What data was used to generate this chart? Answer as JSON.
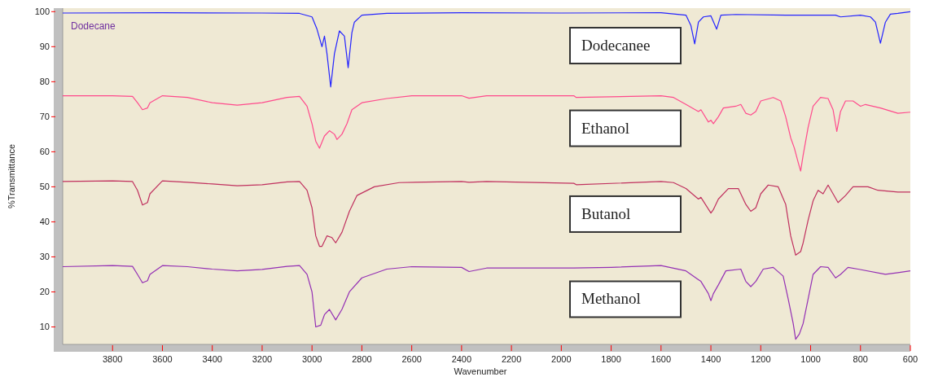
{
  "chart_data": {
    "type": "line",
    "xlabel": "Wavenumber",
    "ylabel": "%Transmittance",
    "xlim": [
      4000,
      600
    ],
    "ylim": [
      5,
      101
    ],
    "xticks": [
      3800,
      3600,
      3400,
      3200,
      3000,
      2800,
      2600,
      2400,
      2200,
      2000,
      1800,
      1600,
      1400,
      1200,
      1000,
      800,
      600
    ],
    "yticks": [
      10,
      20,
      30,
      40,
      50,
      60,
      70,
      80,
      90,
      100
    ],
    "grid": false,
    "annotations": [
      "Dodecane"
    ],
    "series": [
      {
        "name": "Dodecanee",
        "color": "#2424ff",
        "x": [
          4000,
          3600,
          3200,
          3050,
          3000,
          2980,
          2960,
          2950,
          2940,
          2925,
          2910,
          2890,
          2870,
          2855,
          2840,
          2830,
          2800,
          2700,
          2400,
          2000,
          1600,
          1500,
          1480,
          1465,
          1450,
          1430,
          1400,
          1377,
          1360,
          1300,
          1100,
          900,
          880,
          800,
          760,
          740,
          720,
          700,
          680,
          650,
          600
        ],
        "values": [
          99.6,
          99.7,
          99.6,
          99.5,
          98.5,
          95,
          90,
          93,
          88,
          78.5,
          88,
          94.5,
          93,
          84,
          94,
          97,
          99,
          99.5,
          99.7,
          99.6,
          99.7,
          99,
          96,
          90.8,
          97,
          98.5,
          98.8,
          95,
          99,
          99.2,
          99,
          99,
          98.5,
          99,
          98.5,
          97,
          91,
          97,
          99.3,
          99.5,
          100
        ]
      },
      {
        "name": "Ethanol",
        "color": "#ff4a8c",
        "x": [
          4000,
          3800,
          3720,
          3700,
          3680,
          3660,
          3650,
          3600,
          3500,
          3400,
          3300,
          3200,
          3100,
          3050,
          3020,
          3000,
          2985,
          2970,
          2950,
          2930,
          2910,
          2900,
          2880,
          2860,
          2840,
          2800,
          2700,
          2600,
          2400,
          2370,
          2300,
          1950,
          1940,
          1600,
          1550,
          1500,
          1450,
          1440,
          1410,
          1400,
          1390,
          1370,
          1350,
          1300,
          1280,
          1260,
          1240,
          1220,
          1200,
          1150,
          1120,
          1100,
          1080,
          1065,
          1050,
          1040,
          1030,
          1010,
          990,
          960,
          930,
          910,
          895,
          880,
          860,
          830,
          800,
          780,
          720,
          650,
          600
        ],
        "values": [
          76,
          76,
          75.8,
          74,
          72,
          72.5,
          74,
          76,
          75.5,
          74,
          73.3,
          74,
          75.5,
          75.8,
          73,
          68,
          63,
          61,
          64.5,
          66,
          65,
          63.5,
          65,
          68,
          72,
          74,
          75.2,
          76,
          76,
          75.3,
          76,
          76,
          75.5,
          76,
          75.5,
          73.5,
          71.5,
          72,
          68.5,
          69,
          68,
          70,
          72.5,
          73,
          73.5,
          71,
          70.5,
          71.5,
          74.5,
          75.5,
          74.5,
          70,
          64,
          61,
          57,
          54.5,
          59,
          67,
          73,
          75.5,
          75.2,
          72,
          65.8,
          71.5,
          74.5,
          74.5,
          73,
          73.5,
          72.5,
          71,
          71.3
        ]
      },
      {
        "name": "Butanol",
        "color": "#c0305e",
        "x": [
          4000,
          3800,
          3720,
          3700,
          3680,
          3660,
          3650,
          3600,
          3500,
          3400,
          3300,
          3200,
          3100,
          3050,
          3020,
          3000,
          2985,
          2970,
          2960,
          2940,
          2920,
          2905,
          2880,
          2850,
          2820,
          2750,
          2650,
          2400,
          2370,
          2300,
          1950,
          1940,
          1600,
          1550,
          1500,
          1450,
          1440,
          1400,
          1390,
          1370,
          1330,
          1290,
          1260,
          1240,
          1220,
          1200,
          1170,
          1130,
          1100,
          1080,
          1060,
          1040,
          1030,
          1010,
          990,
          970,
          950,
          930,
          910,
          890,
          860,
          830,
          770,
          730,
          650,
          600
        ],
        "values": [
          51.5,
          51.7,
          51.5,
          49,
          44.8,
          45.5,
          48,
          51.7,
          51.3,
          50.8,
          50.3,
          50.6,
          51.4,
          51.5,
          49,
          44,
          36,
          33,
          33,
          36,
          35.5,
          34,
          37,
          43,
          47.5,
          50,
          51.2,
          51.5,
          51.3,
          51.5,
          51,
          50.6,
          51.5,
          51.2,
          49.5,
          46.5,
          47,
          42.5,
          43.5,
          46.5,
          49.5,
          49.5,
          45,
          43,
          44,
          48,
          50.5,
          50,
          45,
          36,
          30.5,
          31.5,
          34,
          40.5,
          46,
          49,
          48,
          50.5,
          48,
          45.5,
          47.5,
          50,
          50,
          49,
          48.5,
          48.5
        ]
      },
      {
        "name": "Methanol",
        "color": "#9430b4",
        "x": [
          4000,
          3800,
          3720,
          3700,
          3680,
          3660,
          3650,
          3600,
          3500,
          3400,
          3300,
          3200,
          3100,
          3050,
          3020,
          3000,
          2985,
          2965,
          2950,
          2930,
          2905,
          2880,
          2850,
          2800,
          2700,
          2600,
          2400,
          2370,
          2300,
          1950,
          1800,
          1600,
          1500,
          1450,
          1440,
          1410,
          1400,
          1390,
          1370,
          1340,
          1280,
          1260,
          1240,
          1220,
          1190,
          1150,
          1110,
          1090,
          1070,
          1060,
          1045,
          1030,
          1010,
          990,
          960,
          930,
          900,
          880,
          850,
          810,
          700,
          650,
          600
        ],
        "values": [
          27.2,
          27.5,
          27.3,
          25,
          22.6,
          23.2,
          25,
          27.5,
          27.2,
          26.5,
          26,
          26.4,
          27.3,
          27.5,
          25,
          20,
          10,
          10.5,
          13.5,
          15,
          12,
          15,
          20,
          24,
          26.5,
          27.2,
          27,
          25.8,
          26.8,
          26.8,
          27,
          27.5,
          26,
          23.5,
          23,
          19.5,
          17.5,
          19.5,
          22,
          26,
          26.5,
          23,
          21.5,
          23,
          26.5,
          27,
          24.5,
          18,
          11,
          6.5,
          8,
          11,
          18,
          25,
          27.2,
          27,
          24,
          25,
          27,
          26.5,
          25,
          25.5,
          26
        ]
      }
    ]
  }
}
